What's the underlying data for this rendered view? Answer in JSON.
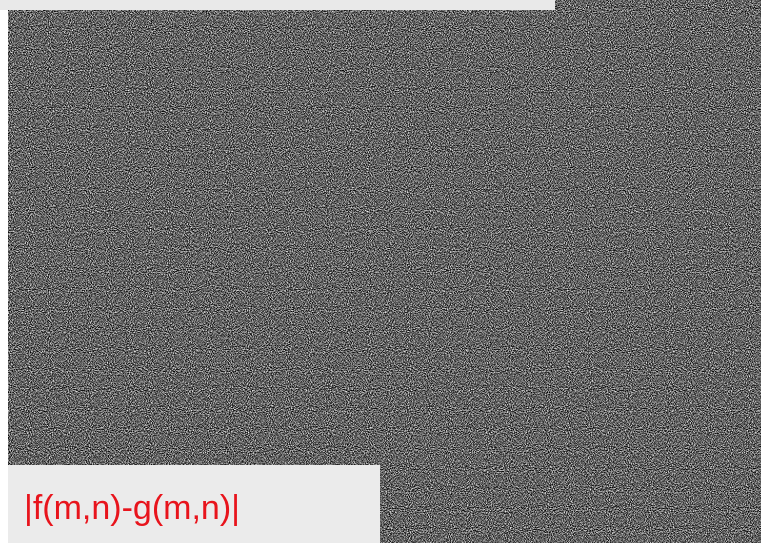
{
  "label": "|f(m,n)-g(m,n)|"
}
